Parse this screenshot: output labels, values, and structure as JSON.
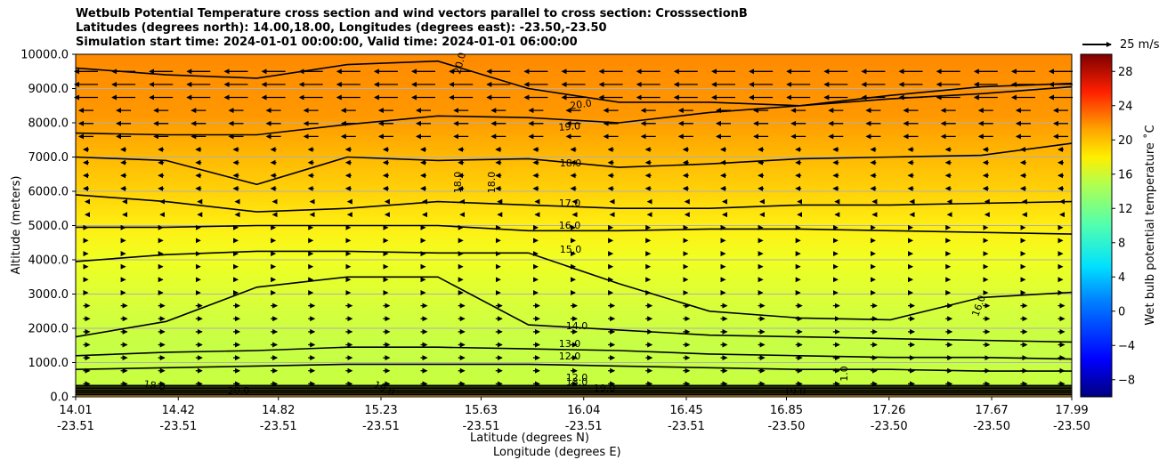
{
  "title_lines": [
    "Wetbulb Potential Temperature cross section and wind vectors parallel to cross section: CrosssectionB",
    "Latitudes (degrees north): 14.00,18.00, Longitudes (degrees east): -23.50,-23.50",
    "Simulation start time: 2024-01-01 00:00:00, Valid time: 2024-01-01 06:00:00"
  ],
  "colors": {
    "contour_line": "#000000",
    "grid": "#b0b0b0"
  },
  "chart_data": {
    "type": "contour",
    "ylabel": "Altitude (meters)",
    "xlabel_lines": [
      "Latitude (degrees N)",
      "Longitude (degrees E)"
    ],
    "ylim": [
      0,
      10000
    ],
    "y_ticks": [
      "0.0",
      "1000.0",
      "2000.0",
      "3000.0",
      "4000.0",
      "5000.0",
      "6000.0",
      "7000.0",
      "8000.0",
      "9000.0",
      "10000.0"
    ],
    "x_ticks": [
      {
        "lat": "14.01",
        "lon": "-23.51"
      },
      {
        "lat": "14.42",
        "lon": "-23.51"
      },
      {
        "lat": "14.82",
        "lon": "-23.51"
      },
      {
        "lat": "15.23",
        "lon": "-23.51"
      },
      {
        "lat": "15.63",
        "lon": "-23.51"
      },
      {
        "lat": "16.04",
        "lon": "-23.51"
      },
      {
        "lat": "16.45",
        "lon": "-23.51"
      },
      {
        "lat": "16.85",
        "lon": "-23.50"
      },
      {
        "lat": "17.26",
        "lon": "-23.50"
      },
      {
        "lat": "17.67",
        "lon": "-23.50"
      },
      {
        "lat": "17.99",
        "lon": "-23.50"
      }
    ],
    "grid": "horizontal",
    "colorbar": {
      "label": "Wet bulb potential temperature ˚C",
      "range": [
        -10,
        30
      ],
      "ticks": [
        "−8",
        "−4",
        "0",
        "4",
        "8",
        "12",
        "16",
        "20",
        "24",
        "28"
      ]
    },
    "reference_vector": "25 m/s",
    "contour_labels": [
      "20.0",
      "20.0",
      "19.0",
      "18.0",
      "18.0",
      "18.0",
      "17.0",
      "16.0",
      "15.0",
      "16.0",
      "14.0",
      "13.0",
      "12.0",
      "1.0",
      "19.0",
      "12.0",
      "13.0",
      "19.0",
      "20.0",
      "18.0",
      "19.0"
    ],
    "contour_profiles": [
      {
        "level": 20,
        "heights": [
          9600,
          9400,
          9300,
          9700,
          9800,
          9000,
          8600,
          8600,
          8500,
          8800,
          9050,
          9150
        ]
      },
      {
        "level": 19,
        "heights": [
          7700,
          7650,
          7650,
          7950,
          8200,
          8150,
          8000,
          8300,
          8500,
          8700,
          8850,
          9050
        ]
      },
      {
        "level": 18,
        "heights": [
          7000,
          6900,
          6200,
          7000,
          6900,
          6950,
          6700,
          6800,
          6950,
          7000,
          7050,
          7400
        ]
      },
      {
        "level": 17,
        "heights": [
          5900,
          5700,
          5400,
          5500,
          5700,
          5600,
          5500,
          5500,
          5600,
          5600,
          5650,
          5700
        ]
      },
      {
        "level": 16,
        "heights": [
          4950,
          4950,
          5000,
          5000,
          5000,
          4850,
          4850,
          4900,
          4900,
          4850,
          4800,
          4750
        ]
      },
      {
        "level": 15,
        "heights": [
          3950,
          4150,
          4250,
          4250,
          4200,
          4200,
          3300,
          2500,
          2300,
          2250,
          2900,
          3050
        ]
      },
      {
        "level": 14,
        "heights": [
          1750,
          2200,
          3200,
          3500,
          3500,
          2100,
          1950,
          1800,
          1750,
          1700,
          1650,
          1600
        ]
      },
      {
        "level": 13,
        "heights": [
          1200,
          1300,
          1350,
          1450,
          1450,
          1400,
          1350,
          1250,
          1200,
          1150,
          1150,
          1100
        ]
      },
      {
        "level": 12,
        "heights": [
          800,
          850,
          900,
          950,
          950,
          950,
          900,
          850,
          800,
          800,
          750,
          750
        ]
      }
    ],
    "wind_note": "westward (easterly) winds aloft above ~6000 m, eastward (westerly) winds below ~5000 m"
  }
}
